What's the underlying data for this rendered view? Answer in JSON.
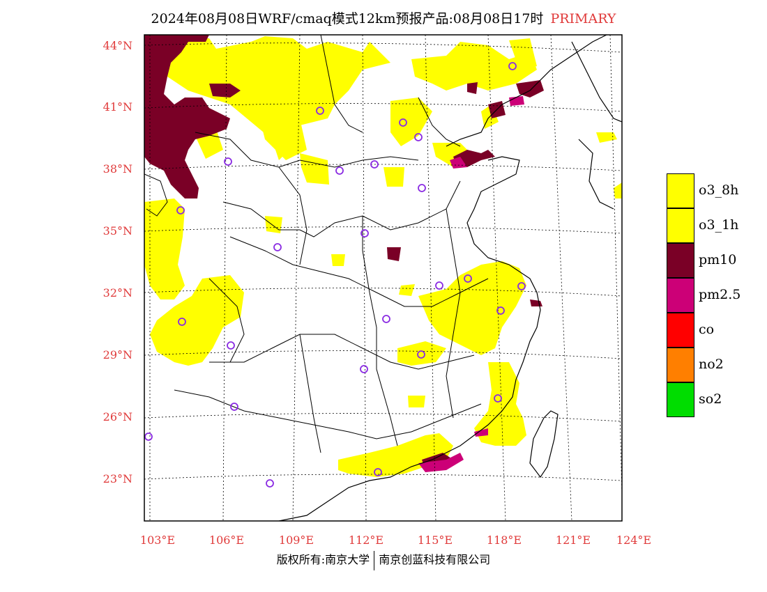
{
  "title": {
    "main": "2024年08月08日WRF/cmaq模式12km预报产品:08月08日17时",
    "tag": "PRIMARY"
  },
  "lat_labels": [
    "44°N",
    "41°N",
    "38°N",
    "35°N",
    "32°N",
    "29°N",
    "26°N",
    "23°N"
  ],
  "lon_labels": [
    "103°E",
    "106°E",
    "109°E",
    "112°E",
    "115°E",
    "118°E",
    "121°E",
    "124°E"
  ],
  "legend": [
    {
      "label": "o3_8h",
      "color": "#ffff00"
    },
    {
      "label": "o3_1h",
      "color": "#ffff00"
    },
    {
      "label": "pm10",
      "color": "#7a0026"
    },
    {
      "label": "pm2.5",
      "color": "#cc0077"
    },
    {
      "label": "co",
      "color": "#ff0000"
    },
    {
      "label": "no2",
      "color": "#ff7f00"
    },
    {
      "label": "so2",
      "color": "#00dd00"
    }
  ],
  "footer": {
    "left": "版权所有:南京大学",
    "right": "南京创蓝科技有限公司"
  },
  "colors": {
    "ozone": "#ffff00",
    "pm10": "#7a0026",
    "pm25": "#cc0077",
    "station_marker": "#8a2be2",
    "axis_label": "#e03a3a"
  }
}
